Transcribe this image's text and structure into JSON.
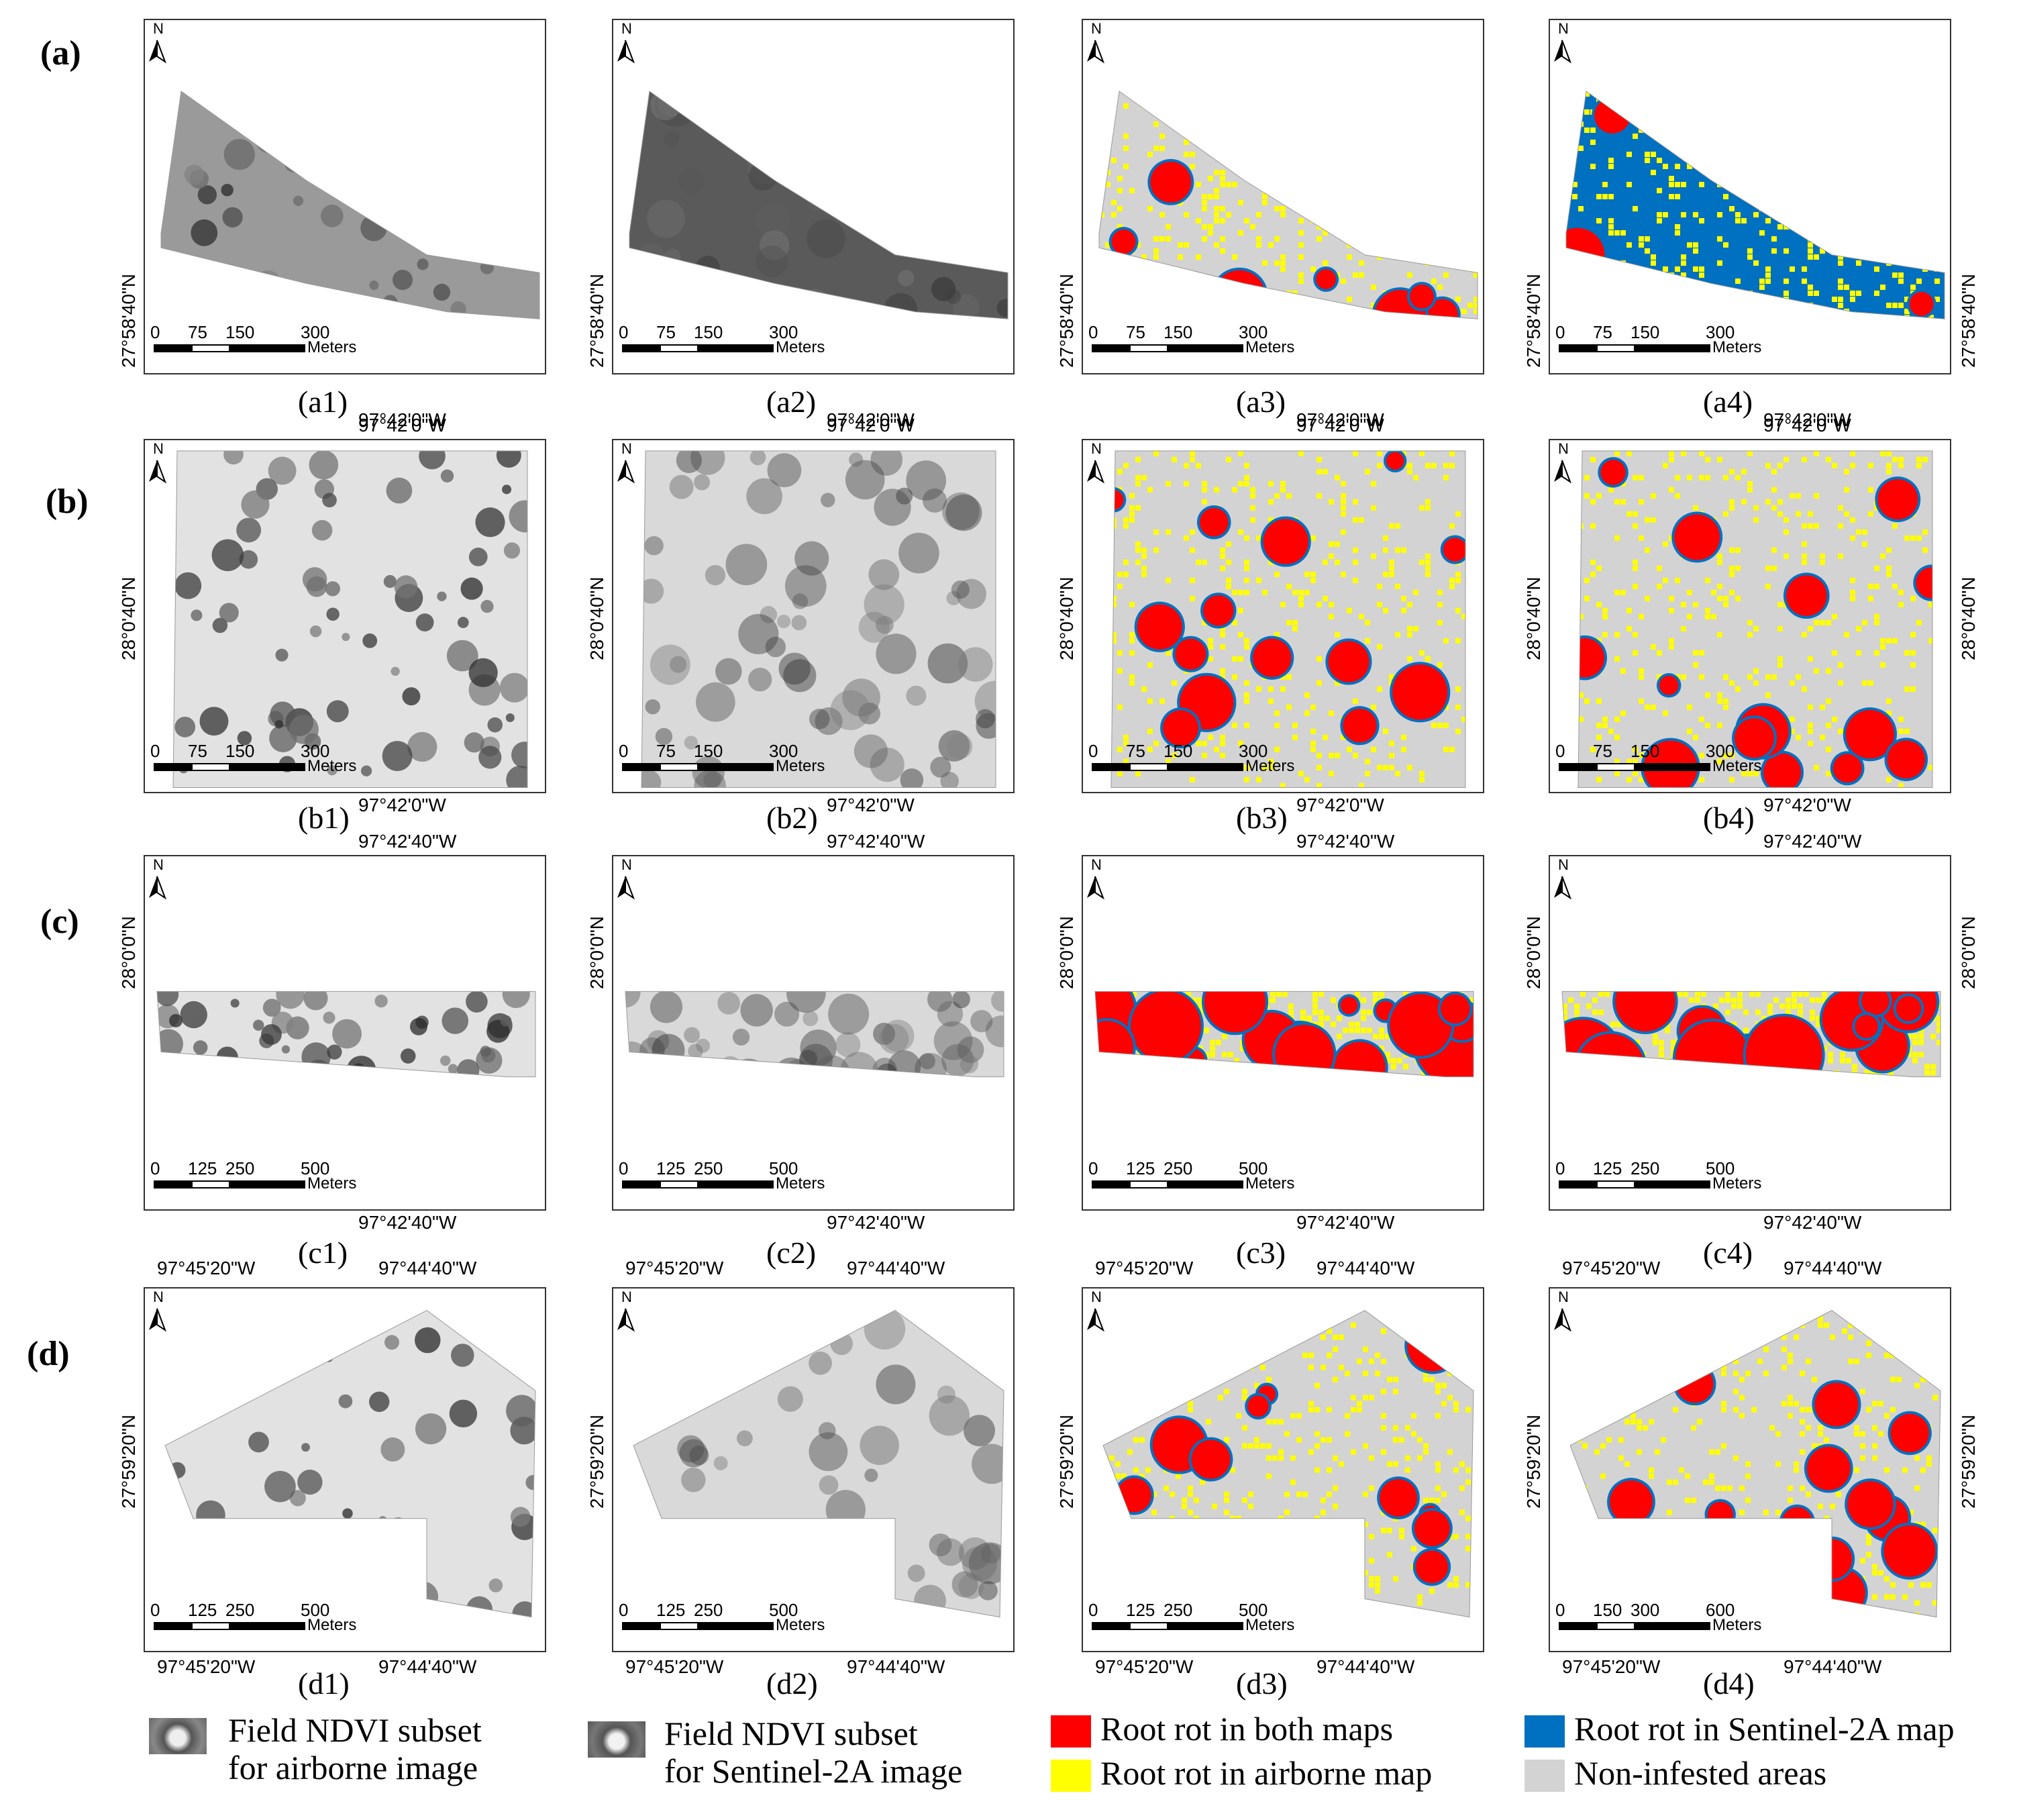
{
  "rows": [
    {
      "id": "a",
      "label": "(a)",
      "captions": [
        "(a1)",
        "(a2)",
        "(a3)",
        "(a4)"
      ],
      "lon_label": "97°42'0\"W",
      "lat_label": "27°58'40\"N",
      "scales": [
        "0",
        "75",
        "150",
        "300"
      ],
      "unit": "Meters"
    },
    {
      "id": "b",
      "label": "(b)",
      "captions": [
        "(b1)",
        "(b2)",
        "(b3)",
        "(b4)"
      ],
      "lon_label": "97°42'0\"W",
      "lat_label": "28°0'40\"N",
      "scales": [
        "0",
        "75",
        "150",
        "300"
      ],
      "unit": "Meters"
    },
    {
      "id": "c",
      "label": "(c)",
      "captions": [
        "(c1)",
        "(c2)",
        "(c3)",
        "(c4)"
      ],
      "lon_label": "97°42'40\"W",
      "lat_label": "28°0'0\"N",
      "scales": [
        "0",
        "125",
        "250",
        "500"
      ],
      "unit": "Meters"
    },
    {
      "id": "d",
      "label": "(d)",
      "captions": [
        "(d1)",
        "(d2)",
        "(d3)",
        "(d4)"
      ],
      "lon_label_left": "97°45'20\"W",
      "lon_label_right": "97°44'40\"W",
      "lat_label": "27°59'20\"N",
      "scales": [
        "0",
        "125",
        "250",
        "500"
      ],
      "scales_d4": [
        "0",
        "150",
        "300",
        "600"
      ],
      "unit": "Meters"
    }
  ],
  "north_label": "N",
  "legend": {
    "airborne": "Field NDVI subset for airborne image",
    "airborne_l1": "Field NDVI subset",
    "airborne_l2": "for airborne image",
    "sentinel_l1": "Field NDVI subset",
    "sentinel_l2": "for Sentinel-2A image",
    "both": "Root rot in both maps",
    "airborne_map": "Root rot in airborne map",
    "sentinel_map": "Root rot in Sentinel-2A map",
    "non_infested": "Non-infested areas"
  },
  "colors": {
    "both": "#ff0000",
    "airborne_map": "#ffff00",
    "sentinel_map": "#0070c0",
    "non_infested": "#d3d3d3"
  }
}
